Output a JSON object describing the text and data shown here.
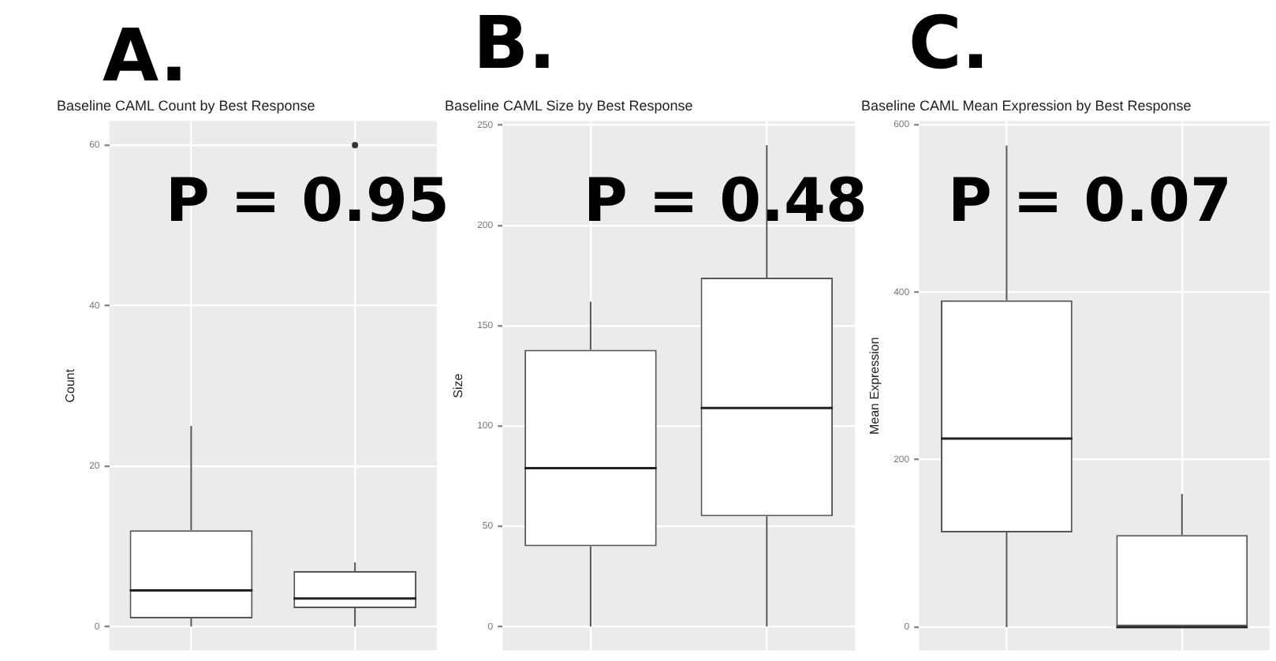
{
  "chart_data": [
    {
      "type": "box",
      "title": "Baseline CAML Count by Best Response",
      "ylabel": "Count",
      "categories": [
        null,
        null
      ],
      "ylim": [
        -3,
        63
      ],
      "yticks": [
        0,
        20,
        40,
        60
      ],
      "grid": true,
      "tick_labels": "y",
      "annotations": [
        "A.",
        "P = 0.95"
      ],
      "boxes": [
        {
          "low": 0,
          "q1": 1,
          "median": 4.5,
          "q3": 12,
          "high": 25
        },
        {
          "low": 0,
          "q1": 2.3,
          "median": 3.5,
          "q3": 6.9,
          "high": 8,
          "outliers": [
            60
          ]
        }
      ]
    },
    {
      "type": "box",
      "title": "Baseline CAML Size by Best Response",
      "ylabel": "Size",
      "categories": [
        null,
        null
      ],
      "ylim": [
        -12,
        252
      ],
      "yticks": [
        0,
        50,
        100,
        150,
        200,
        250
      ],
      "grid": true,
      "tick_labels": "y",
      "annotations": [
        "B.",
        "P = 0.48"
      ],
      "boxes": [
        {
          "low": 0,
          "q1": 40,
          "median": 79,
          "q3": 138,
          "high": 162
        },
        {
          "low": 0,
          "q1": 55,
          "median": 109,
          "q3": 174,
          "high": 240
        }
      ]
    },
    {
      "type": "box",
      "title": "Baseline CAML Mean Expression by Best Response",
      "ylabel": "Mean Expression",
      "categories": [
        null,
        null
      ],
      "ylim": [
        -28,
        604
      ],
      "yticks": [
        0,
        200,
        400,
        600
      ],
      "grid": true,
      "tick_labels": "y",
      "annotations": [
        "C.",
        "P = 0.07"
      ],
      "boxes": [
        {
          "low": 0,
          "q1": 113,
          "median": 225,
          "q3": 390,
          "high": 575
        },
        {
          "low": 0,
          "q1": 0,
          "median": 0,
          "q3": 110,
          "high": 159
        }
      ]
    }
  ]
}
